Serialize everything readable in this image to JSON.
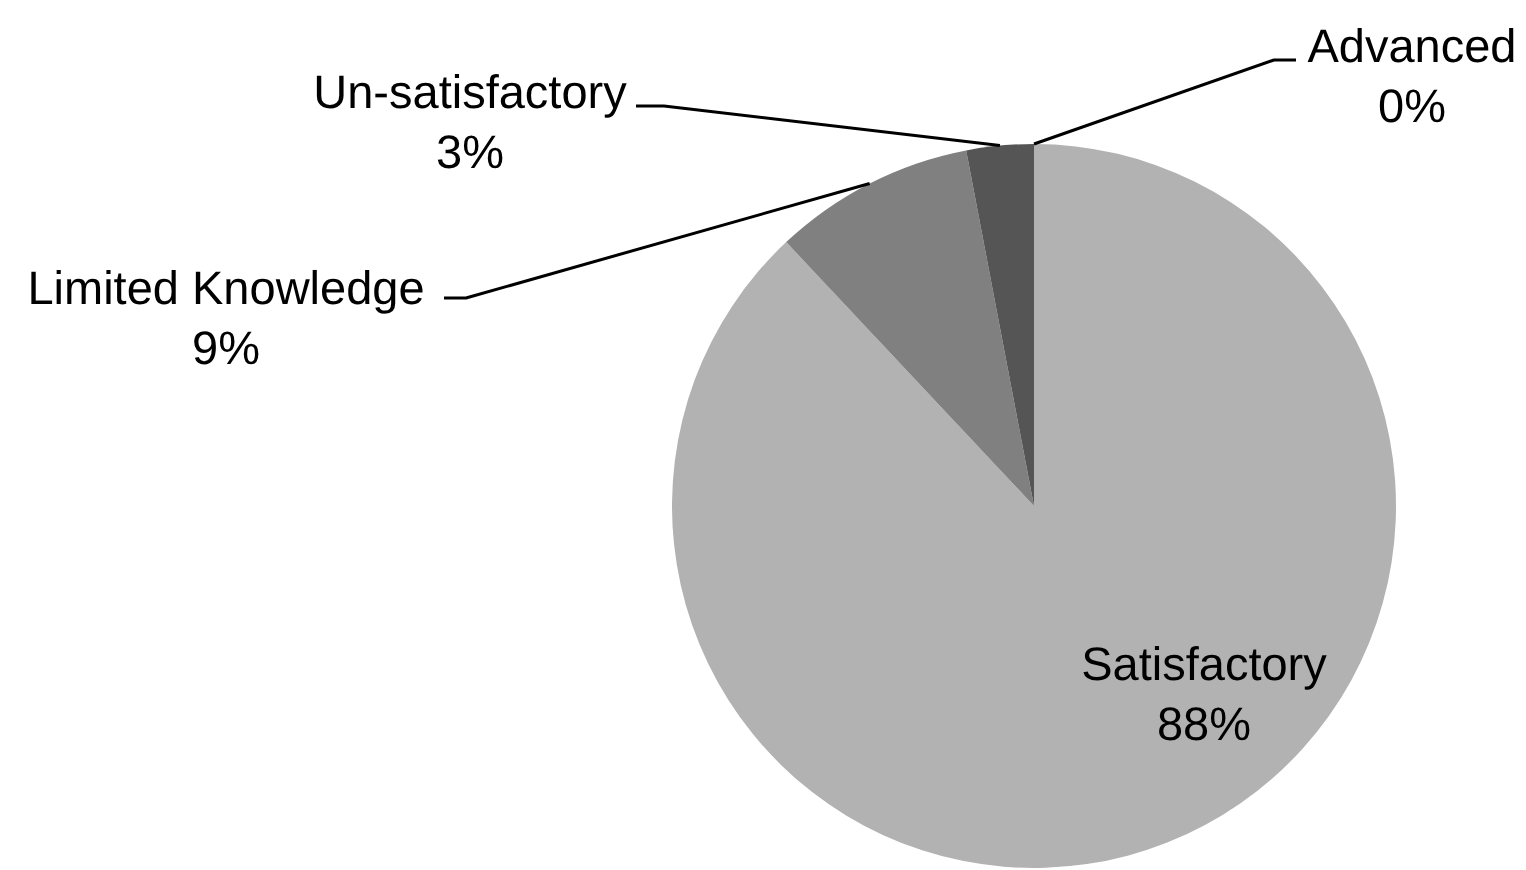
{
  "chart_data": {
    "type": "pie",
    "categories": [
      "Advanced",
      "Satisfactory",
      "Limited Knowledge",
      "Un-satisfactory"
    ],
    "values": [
      0,
      88,
      9,
      3
    ],
    "colors": [
      null,
      "#b2b2b2",
      "#808080",
      "#555555"
    ],
    "value_labels": [
      "0%",
      "88%",
      "9%",
      "3%"
    ]
  }
}
